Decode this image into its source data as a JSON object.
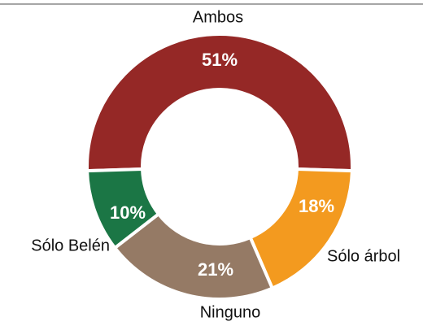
{
  "chart_data": {
    "type": "donut",
    "categories": [
      "Ambos",
      "Sólo árbol",
      "Ninguno",
      "Sólo Belén"
    ],
    "values": [
      51,
      18,
      21,
      10
    ],
    "value_labels": [
      "51%",
      "18%",
      "21%",
      "10%"
    ],
    "colors": [
      "#952826",
      "#f39a1f",
      "#957a65",
      "#1b7645"
    ]
  }
}
